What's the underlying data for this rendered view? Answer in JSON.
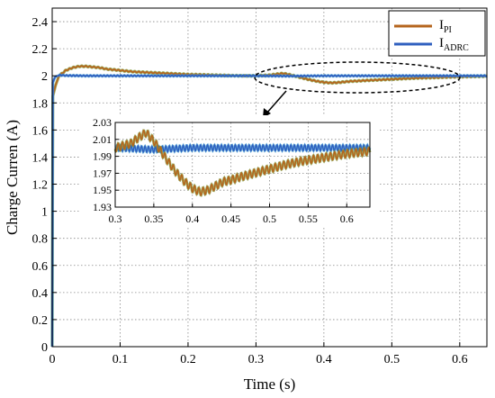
{
  "chart_data": {
    "type": "line",
    "xlabel": "Time (s)",
    "ylabel": "Charge Curren (A)",
    "xlim": [
      0,
      0.64
    ],
    "ylim": [
      0,
      2.5
    ],
    "x_ticks": [
      "0",
      "0.1",
      "0.2",
      "0.3",
      "0.4",
      "0.5",
      "0.6"
    ],
    "y_ticks": [
      "0",
      "0.2",
      "0.4",
      "0.6",
      "0.8",
      "1",
      "1.2",
      "1.4",
      "1.6",
      "1.8",
      "2",
      "2.2",
      "2.4"
    ],
    "grid": true,
    "legend": {
      "position": "top-right",
      "entries": [
        {
          "main": "I",
          "sub": "PI"
        },
        {
          "main": "I",
          "sub": "ADRC"
        }
      ]
    },
    "colors": {
      "pi": "#b5651d",
      "adrc": "#2f5fbf",
      "pi_highlight": "#7d9a3a",
      "adrc_highlight": "#4aa3d6"
    },
    "series": [
      {
        "key": "pi",
        "x": [
          0,
          0.001,
          0.005,
          0.01,
          0.02,
          0.03,
          0.04,
          0.05,
          0.06,
          0.07,
          0.08,
          0.09,
          0.1,
          0.12,
          0.14,
          0.16,
          0.18,
          0.2,
          0.22,
          0.24,
          0.26,
          0.28,
          0.3,
          0.32,
          0.33,
          0.34,
          0.35,
          0.36,
          0.37,
          0.38,
          0.39,
          0.4,
          0.41,
          0.42,
          0.43,
          0.44,
          0.45,
          0.46,
          0.48,
          0.5,
          0.52,
          0.54,
          0.56,
          0.58,
          0.6,
          0.62,
          0.64
        ],
        "y": [
          0,
          1.85,
          1.93,
          2.0,
          2.04,
          2.06,
          2.07,
          2.07,
          2.065,
          2.06,
          2.05,
          2.045,
          2.04,
          2.03,
          2.025,
          2.02,
          2.015,
          2.01,
          2.008,
          2.005,
          2.002,
          2.0,
          2.0,
          2.005,
          2.012,
          2.018,
          2.008,
          1.995,
          1.982,
          1.97,
          1.96,
          1.952,
          1.948,
          1.95,
          1.955,
          1.96,
          1.962,
          1.965,
          1.97,
          1.975,
          1.98,
          1.984,
          1.987,
          1.99,
          1.993,
          1.995,
          1.997
        ]
      },
      {
        "key": "adrc",
        "x": [
          0,
          0.001,
          0.004,
          0.008,
          0.012,
          0.02,
          0.05,
          0.1,
          0.15,
          0.2,
          0.25,
          0.3,
          0.35,
          0.4,
          0.45,
          0.5,
          0.55,
          0.6,
          0.64
        ],
        "y": [
          0,
          1.95,
          1.99,
          2.0,
          2.005,
          2.002,
          2.0,
          2.0,
          2.0,
          2.0,
          2.0,
          2.0,
          1.998,
          2.0,
          2.0,
          2.0,
          2.0,
          2.0,
          2.0
        ]
      }
    ],
    "inset": {
      "xlim": [
        0.3,
        0.63
      ],
      "ylim": [
        1.93,
        2.03
      ],
      "x_ticks": [
        "0.3",
        "0.35",
        "0.4",
        "0.45",
        "0.5",
        "0.55",
        "0.6"
      ],
      "y_ticks": [
        "1.93",
        "1.95",
        "1.97",
        "1.99",
        "2.01",
        "2.03"
      ],
      "grid": true
    }
  }
}
